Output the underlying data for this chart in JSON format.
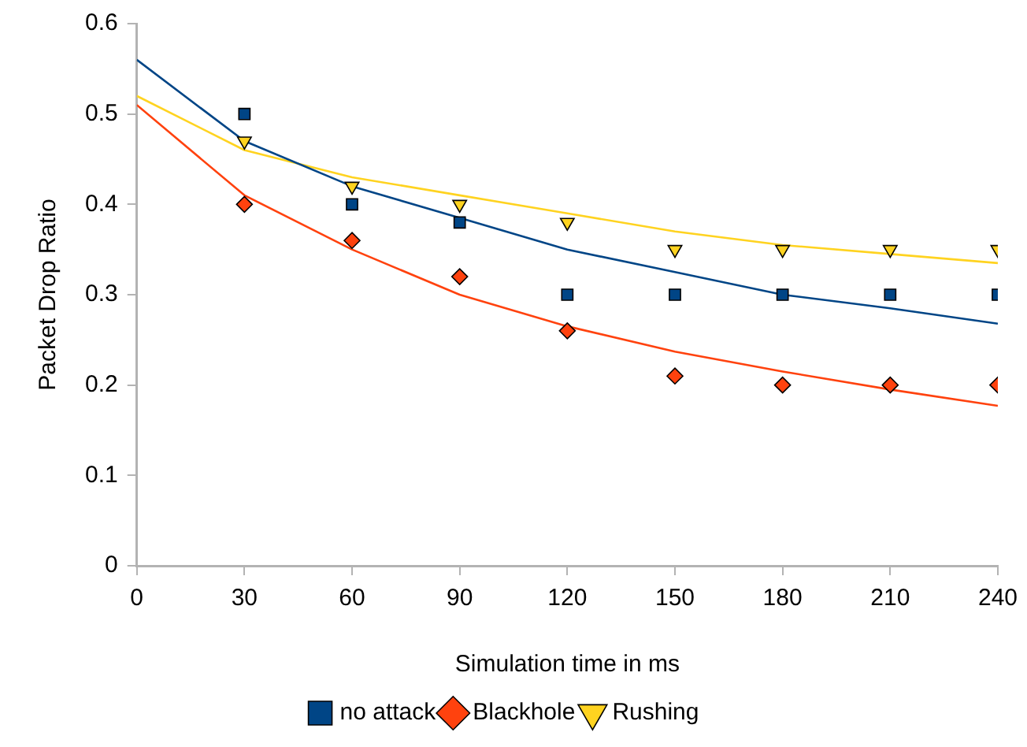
{
  "chart_data": {
    "type": "scatter",
    "xlabel": "Simulation time in ms",
    "ylabel": "Packet Drop Ratio",
    "xlim": [
      0,
      240
    ],
    "xticks": [
      0,
      30,
      60,
      90,
      120,
      150,
      180,
      210,
      240
    ],
    "ylim": [
      0,
      0.6
    ],
    "yticks": [
      0,
      0.1,
      0.2,
      0.3,
      0.4,
      0.5,
      0.6
    ],
    "grid": false,
    "legend": "bottom",
    "series": [
      {
        "name": "no attack",
        "color": "#004586",
        "marker": "square",
        "x": [
          30,
          60,
          90,
          120,
          150,
          180,
          210,
          240
        ],
        "values": [
          0.5,
          0.4,
          0.38,
          0.3,
          0.3,
          0.3,
          0.3,
          0.3
        ]
      },
      {
        "name": "Blackhole",
        "color": "#ff420e",
        "marker": "diamond",
        "x": [
          30,
          60,
          90,
          120,
          150,
          180,
          210,
          240
        ],
        "values": [
          0.4,
          0.36,
          0.32,
          0.26,
          0.21,
          0.2,
          0.2,
          0.2
        ]
      },
      {
        "name": "Rushing",
        "color": "#ffd320",
        "marker": "triangle",
        "x": [
          30,
          60,
          90,
          120,
          150,
          180,
          210,
          240
        ],
        "values": [
          0.47,
          0.42,
          0.4,
          0.38,
          0.35,
          0.35,
          0.35,
          0.35
        ]
      },
      {
        "type": "line",
        "color": "#004586",
        "marker": "none",
        "x": [
          0,
          30,
          60,
          90,
          120,
          150,
          180,
          210,
          240
        ],
        "values": [
          0.56,
          0.47,
          0.42,
          0.385,
          0.35,
          0.325,
          0.3,
          0.285,
          0.268
        ]
      },
      {
        "type": "line",
        "color": "#ff420e",
        "marker": "none",
        "x": [
          0,
          30,
          60,
          90,
          120,
          150,
          180,
          210,
          240
        ],
        "values": [
          0.51,
          0.41,
          0.35,
          0.3,
          0.265,
          0.237,
          0.215,
          0.195,
          0.177
        ]
      },
      {
        "type": "line",
        "color": "#ffd320",
        "marker": "none",
        "x": [
          0,
          30,
          60,
          90,
          120,
          150,
          180,
          210,
          240
        ],
        "values": [
          0.52,
          0.46,
          0.43,
          0.41,
          0.39,
          0.37,
          0.355,
          0.345,
          0.335
        ]
      }
    ]
  }
}
